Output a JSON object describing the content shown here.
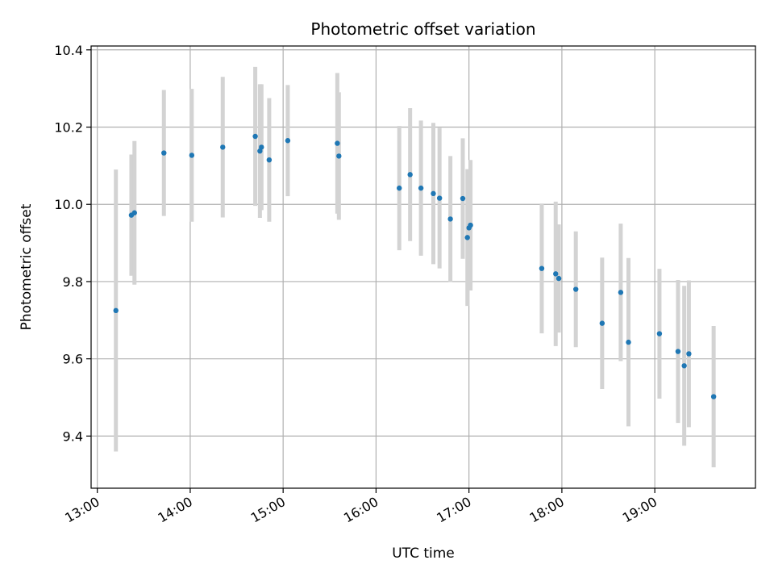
{
  "chart_data": {
    "type": "scatter",
    "title": "Photometric offset variation",
    "xlabel": "UTC time",
    "ylabel": "Photometric offset",
    "xlim": [
      "12:56",
      "20:05"
    ],
    "ylim": [
      9.265,
      10.41
    ],
    "xticks": [
      "13:00",
      "14:00",
      "15:00",
      "16:00",
      "17:00",
      "18:00",
      "19:00"
    ],
    "yticks": [
      9.4,
      9.6,
      9.8,
      10.0,
      10.2,
      10.4
    ],
    "grid": true,
    "colors": {
      "point": "#1f77b4",
      "errorbar": "#d3d3d3",
      "grid": "#b0b0b0"
    },
    "points": [
      {
        "x": "13:12",
        "y": 9.725,
        "err": 0.365
      },
      {
        "x": "13:22",
        "y": 9.972,
        "err": 0.157
      },
      {
        "x": "13:24",
        "y": 9.978,
        "err": 0.186
      },
      {
        "x": "13:43",
        "y": 10.133,
        "err": 0.163
      },
      {
        "x": "14:01",
        "y": 10.127,
        "err": 0.172
      },
      {
        "x": "14:21",
        "y": 10.148,
        "err": 0.182
      },
      {
        "x": "14:42",
        "y": 10.176,
        "err": 0.18
      },
      {
        "x": "14:45",
        "y": 10.138,
        "err": 0.173
      },
      {
        "x": "14:46",
        "y": 10.148,
        "err": 0.163
      },
      {
        "x": "14:51",
        "y": 10.115,
        "err": 0.16
      },
      {
        "x": "15:03",
        "y": 10.165,
        "err": 0.144
      },
      {
        "x": "15:35",
        "y": 10.158,
        "err": 0.182
      },
      {
        "x": "15:36",
        "y": 10.125,
        "err": 0.165
      },
      {
        "x": "16:15",
        "y": 10.042,
        "err": 0.161
      },
      {
        "x": "16:22",
        "y": 10.077,
        "err": 0.172
      },
      {
        "x": "16:29",
        "y": 10.042,
        "err": 0.175
      },
      {
        "x": "16:37",
        "y": 10.028,
        "err": 0.183
      },
      {
        "x": "16:41",
        "y": 10.016,
        "err": 0.182
      },
      {
        "x": "16:48",
        "y": 9.962,
        "err": 0.163
      },
      {
        "x": "16:56",
        "y": 10.015,
        "err": 0.156
      },
      {
        "x": "16:59",
        "y": 9.914,
        "err": 0.177
      },
      {
        "x": "17:00",
        "y": 9.939,
        "err": 0.143
      },
      {
        "x": "17:01",
        "y": 9.946,
        "err": 0.169
      },
      {
        "x": "17:47",
        "y": 9.834,
        "err": 0.168
      },
      {
        "x": "17:56",
        "y": 9.82,
        "err": 0.187
      },
      {
        "x": "17:58",
        "y": 9.808,
        "err": 0.14
      },
      {
        "x": "18:09",
        "y": 9.78,
        "err": 0.15
      },
      {
        "x": "18:26",
        "y": 9.692,
        "err": 0.17
      },
      {
        "x": "18:38",
        "y": 9.772,
        "err": 0.178
      },
      {
        "x": "18:43",
        "y": 9.643,
        "err": 0.218
      },
      {
        "x": "19:03",
        "y": 9.665,
        "err": 0.168
      },
      {
        "x": "19:15",
        "y": 9.619,
        "err": 0.185
      },
      {
        "x": "19:19",
        "y": 9.582,
        "err": 0.207
      },
      {
        "x": "19:22",
        "y": 9.613,
        "err": 0.19
      },
      {
        "x": "19:38",
        "y": 9.502,
        "err": 0.183
      }
    ]
  }
}
